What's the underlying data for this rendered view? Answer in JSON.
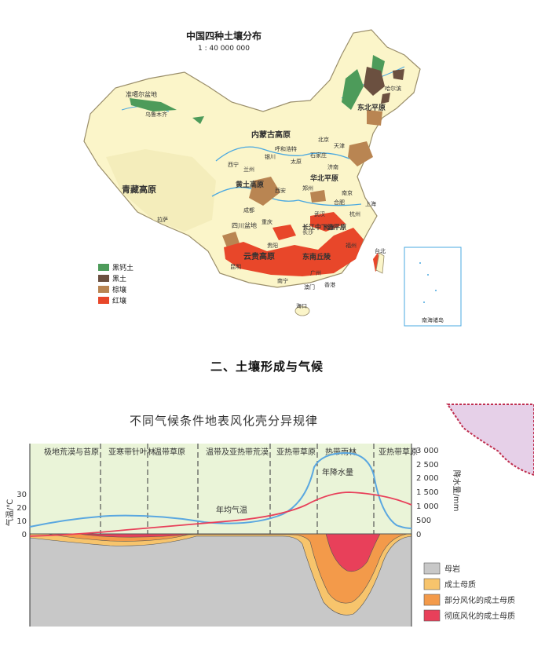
{
  "map": {
    "title": "中国四种土壤分布",
    "scale": "1 : 40 000 000",
    "regions": [
      "准噶尔盆地",
      "内蒙古高原",
      "东北平原",
      "黄土高原",
      "华北平原",
      "青藏高原",
      "四川盆地",
      "云贵高原",
      "长江中下游平原",
      "东南丘陵"
    ],
    "cities": [
      "乌鲁木齐",
      "哈尔滨",
      "呼和浩特",
      "北京",
      "天津",
      "银川",
      "太原",
      "石家庄",
      "济南",
      "兰州",
      "西宁",
      "郑州",
      "西安",
      "南京",
      "合肥",
      "上海",
      "武汉",
      "成都",
      "重庆",
      "长沙",
      "南昌",
      "杭州",
      "福州",
      "拉萨",
      "贵阳",
      "昆明",
      "南宁",
      "广州",
      "台北",
      "香港",
      "澳门",
      "海口"
    ],
    "inset_label": "南海诸岛",
    "legend": [
      {
        "label": "黑钙土",
        "color": "#4d9b5a"
      },
      {
        "label": "黑土",
        "color": "#6b5040"
      },
      {
        "label": "棕壤",
        "color": "#b98552"
      },
      {
        "label": "红壤",
        "color": "#e8472a"
      }
    ]
  },
  "section_heading": "二、土壤形成与气候",
  "diagram": {
    "title": "不同气候条件地表风化壳分异规律",
    "zones": [
      "极地荒漠与苔原",
      "亚寒带针叶林",
      "温带草原",
      "温带及亚热带荒漠",
      "亚热带草原",
      "热带雨林",
      "亚热带草原"
    ],
    "left_axis": {
      "label": "气温/℃",
      "ticks": [
        "30",
        "20",
        "10",
        "0"
      ]
    },
    "right_axis": {
      "label": "降水量/mm",
      "ticks": [
        "3 000",
        "2 500",
        "2 000",
        "1 500",
        "1 000",
        "500",
        "0"
      ]
    },
    "curve_labels": {
      "precip": "年降水量",
      "temp": "年均气温"
    },
    "legend": [
      {
        "label": "母岩",
        "color": "#c8c8c8"
      },
      {
        "label": "成土母质",
        "color": "#f7c46c"
      },
      {
        "label": "部分风化的成土母质",
        "color": "#f39a4a"
      },
      {
        "label": "彻底风化的成土母质",
        "color": "#e8405a"
      }
    ]
  }
}
